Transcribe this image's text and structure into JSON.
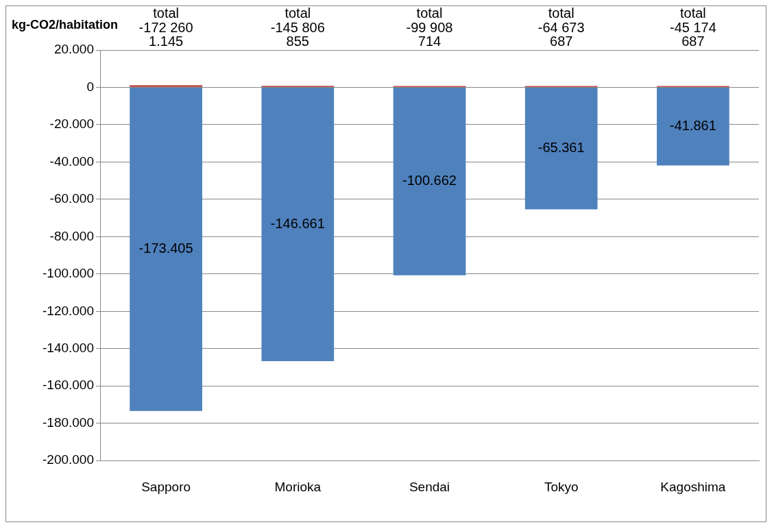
{
  "chart_data": {
    "type": "bar",
    "ylabel": "kg-CO2/habitation",
    "categories": [
      "Sapporo",
      "Morioka",
      "Sendai",
      "Tokyo",
      "Kagoshima"
    ],
    "stacked": true,
    "series": [
      {
        "color": "#c0504d",
        "values": [
          1145,
          855,
          714,
          687,
          687
        ],
        "value_labels": [
          "1.145",
          "855",
          "714",
          "687",
          "687"
        ]
      },
      {
        "color": "#4f81bd",
        "values": [
          -173405,
          -146661,
          -100662,
          -65361,
          -41861
        ],
        "value_labels": [
          "-173.405",
          "-146.661",
          "-100.662",
          "-65.361",
          "-41.861"
        ]
      }
    ],
    "annotations": [
      "total\n-172 260",
      "total\n-145 806",
      "total\n-99 908",
      "total\n-64 673",
      "total\n-45 174"
    ],
    "ylim": [
      -200000,
      20000
    ],
    "yticks": [
      {
        "value": 20000,
        "label": "20.000"
      },
      0,
      {
        "value": -20000,
        "label": "-20.000"
      },
      {
        "value": -40000,
        "label": "-40.000"
      },
      {
        "value": -60000,
        "label": "-60.000"
      },
      {
        "value": -80000,
        "label": "-80.000"
      },
      {
        "value": -100000,
        "label": "-100.000"
      },
      {
        "value": -120000,
        "label": "-120.000"
      },
      {
        "value": -140000,
        "label": "-140.000"
      },
      {
        "value": -160000,
        "label": "-160.000"
      },
      {
        "value": -180000,
        "label": "-180.000"
      },
      {
        "value": -200000,
        "label": "-200.000"
      }
    ],
    "grid": "y",
    "legend": false
  }
}
